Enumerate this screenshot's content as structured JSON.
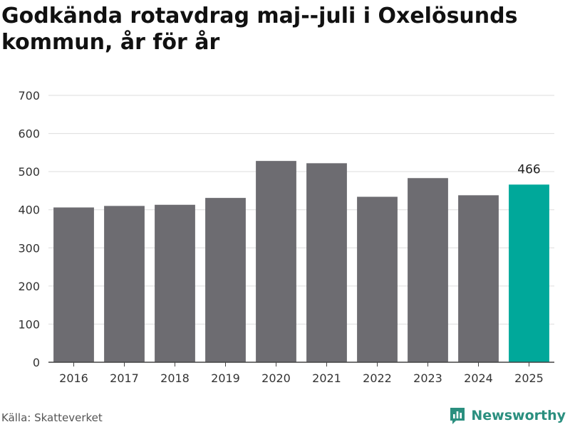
{
  "title": "Godkända rotavdrag maj--juli i Oxelösunds kommun, år för år",
  "source": "Källa: Skatteverket",
  "brand": {
    "name": "Newsworthy",
    "icon": "newsworthy-logo-icon",
    "color": "#2a8f7f"
  },
  "colors": {
    "bar": "#6d6c71",
    "highlight": "#00a89a",
    "grid": "#dddddd",
    "axis": "#444444"
  },
  "chart_data": {
    "type": "bar",
    "title": "Godkända rotavdrag maj--juli i Oxelösunds kommun, år för år",
    "xlabel": "",
    "ylabel": "",
    "categories": [
      "2016",
      "2017",
      "2018",
      "2019",
      "2020",
      "2021",
      "2022",
      "2023",
      "2024",
      "2025"
    ],
    "values": [
      406,
      410,
      413,
      431,
      528,
      522,
      434,
      483,
      438,
      466
    ],
    "highlight_index": 9,
    "data_labels": [
      {
        "index": 9,
        "text": "466"
      }
    ],
    "ylim": [
      0,
      700
    ],
    "yticks": [
      0,
      100,
      200,
      300,
      400,
      500,
      600,
      700
    ],
    "grid": true,
    "legend": "none"
  }
}
